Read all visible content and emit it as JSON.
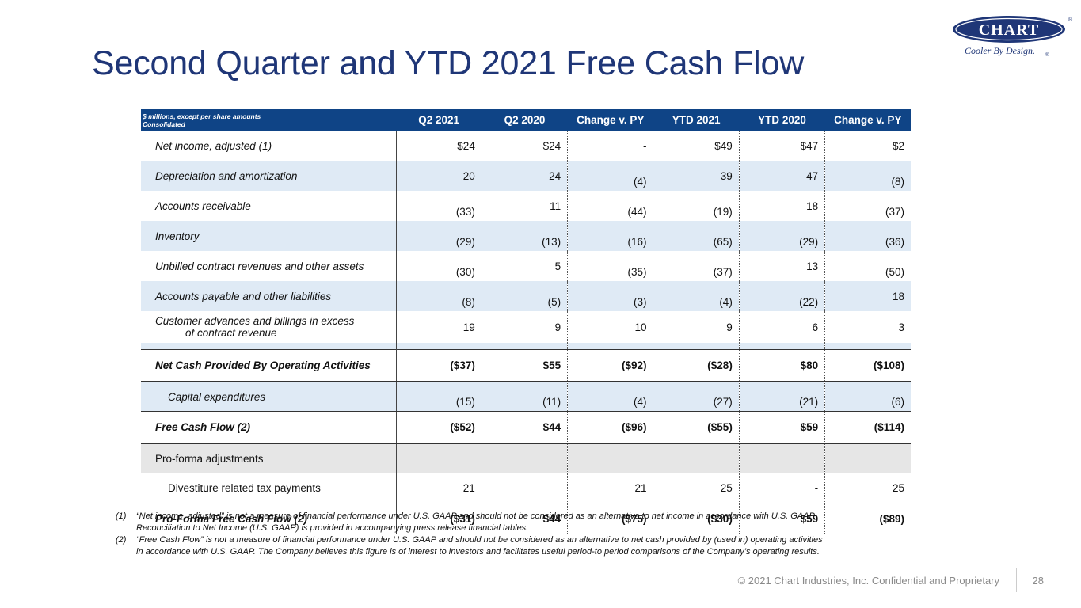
{
  "title": "Second Quarter and YTD 2021 Free Cash Flow",
  "logo": {
    "name": "CHART",
    "tagline": "Cooler By Design.",
    "registered": "®"
  },
  "table": {
    "header_label_line1": "$ millions, except per share amounts",
    "header_label_line2": "Consolidated",
    "columns": [
      "Q2 2021",
      "Q2 2020",
      "Change v. PY",
      "YTD 2021",
      "YTD 2020",
      "Change v. PY"
    ],
    "rows": [
      {
        "label": "Net income, adjusted (1)",
        "values": [
          "$24",
          "$24",
          "-",
          "$49",
          "$47",
          "$2"
        ]
      },
      {
        "label": "Depreciation and amortization",
        "values": [
          "20",
          "24",
          "(4)",
          "39",
          "47",
          "(8)"
        ]
      },
      {
        "label": "Accounts receivable",
        "values": [
          "(33)",
          "11",
          "(44)",
          "(19)",
          "18",
          "(37)"
        ]
      },
      {
        "label": "Inventory",
        "values": [
          "(29)",
          "(13)",
          "(16)",
          "(65)",
          "(29)",
          "(36)"
        ]
      },
      {
        "label": "Unbilled contract revenues and other assets",
        "values": [
          "(30)",
          "5",
          "(35)",
          "(37)",
          "13",
          "(50)"
        ]
      },
      {
        "label": "Accounts payable and other liabilities",
        "values": [
          "(8)",
          "(5)",
          "(3)",
          "(4)",
          "(22)",
          "18"
        ]
      },
      {
        "label_line1": "Customer advances and billings in excess",
        "label_line2": "of contract revenue",
        "values": [
          "19",
          "9",
          "10",
          "9",
          "6",
          "3"
        ]
      },
      {
        "label": "Net Cash Provided By Operating Activities",
        "values": [
          "($37)",
          "$55",
          "($92)",
          "($28)",
          "$80",
          "($108)"
        ]
      },
      {
        "label": "Capital expenditures",
        "values": [
          "(15)",
          "(11)",
          "(4)",
          "(27)",
          "(21)",
          "(6)"
        ]
      },
      {
        "label": "Free Cash Flow (2)",
        "values": [
          "($52)",
          "$44",
          "($96)",
          "($55)",
          "$59",
          "($114)"
        ]
      },
      {
        "label": "Pro-forma adjustments",
        "values": [
          "",
          "",
          "",
          "",
          "",
          ""
        ]
      },
      {
        "label": "Divestiture related tax payments",
        "values": [
          "21",
          "",
          "21",
          "25",
          "-",
          "25"
        ]
      },
      {
        "label": "Pro-Forma Free Cash Flow (2)",
        "values": [
          "($31)",
          "$44",
          "($75)",
          "($30)",
          "$59",
          "($89)"
        ]
      }
    ]
  },
  "notes": [
    {
      "num": "(1)",
      "line1": "“Net income, adjusted” is not a measure of financial performance under U.S. GAAP and should not be considered as an alternative to net income in accordance with U.S. GAAP.",
      "line2": "Reconciliation to Net Income (U.S. GAAP) is provided in accompanying press release financial tables."
    },
    {
      "num": "(2)",
      "line1": "“Free Cash Flow” is not a measure of financial performance under U.S. GAAP and should not be considered as an alternative to net cash provided by (used in) operating activities",
      "line2": "in accordance with U.S. GAAP. The Company believes this figure is of interest to investors and facilitates useful period-to period comparisons of the Company’s operating results."
    }
  ],
  "footer": {
    "copyright": "© 2021 Chart Industries, Inc. Confidential and Proprietary",
    "page": "28"
  },
  "colors": {
    "title": "#1f3677",
    "header_bg": "#0f4486",
    "shade": "#dfeaf5",
    "grey": "#e6e6e6"
  }
}
